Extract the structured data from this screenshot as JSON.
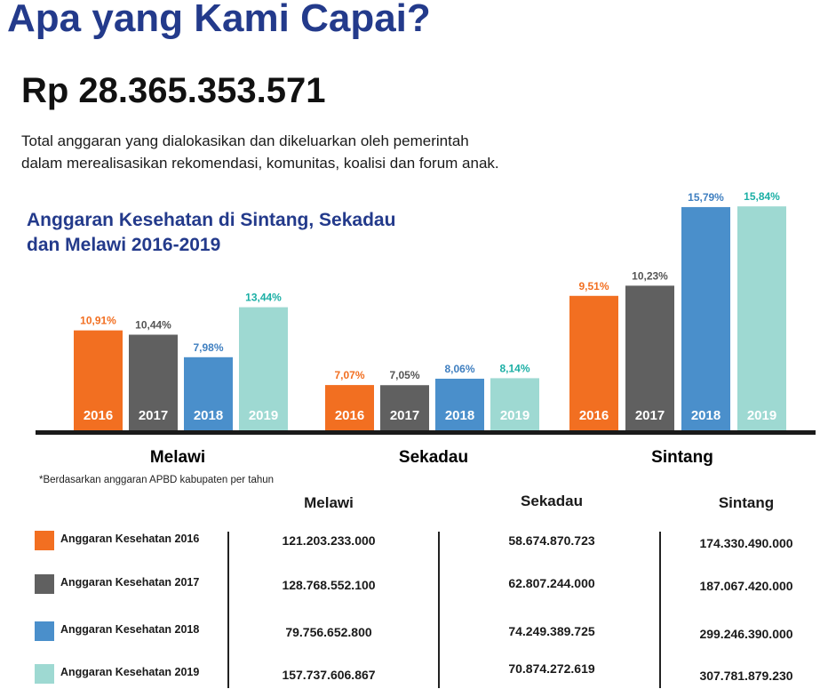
{
  "heading": "Apa yang Kami Capai?",
  "total_amount": "Rp 28.365.353.571",
  "description": [
    "Total anggaran yang dialokasikan dan dikeluarkan oleh pemerintah",
    "dalam merealisasikan rekomendasi, komunitas, koalisi dan forum anak."
  ],
  "chart_data": {
    "type": "bar",
    "title_lines": [
      "Anggaran Kesehatan di Sintang, Sekadau",
      "dan Melawi 2016-2019"
    ],
    "categories": [
      "Melawi",
      "Sekadau",
      "Sintang"
    ],
    "years": [
      "2016",
      "2017",
      "2018",
      "2019"
    ],
    "colors": {
      "2016": "#F26F21",
      "2017": "#606060",
      "2018": "#4A8FCB",
      "2019": "#9ED9D2"
    },
    "label_colors": {
      "2016": "#F26F21",
      "2017": "#555555",
      "2018": "#3F7FC0",
      "2019": "#1BAFA5"
    },
    "series": [
      {
        "name": "2016",
        "values": [
          10.91,
          7.07,
          9.51
        ],
        "labels": [
          "10,91%",
          "7,07%",
          "9,51%"
        ]
      },
      {
        "name": "2017",
        "values": [
          10.44,
          7.05,
          10.23
        ],
        "labels": [
          "10,44%",
          "7,05%",
          "10,23%"
        ]
      },
      {
        "name": "2018",
        "values": [
          7.98,
          8.06,
          15.79
        ],
        "labels": [
          "7,98%",
          "8,06%",
          "15,79%"
        ]
      },
      {
        "name": "2019",
        "values": [
          13.44,
          8.14,
          15.84
        ],
        "labels": [
          "13,44%",
          "8,14%",
          "15,84%"
        ]
      }
    ],
    "unit": "%"
  },
  "note": "*Berdasarkan anggaran APBD kabupaten per tahun",
  "table": {
    "columns": [
      "Melawi",
      "Sekadau",
      "Sintang"
    ],
    "rows": [
      {
        "label": "Anggaran Kesehatan 2016",
        "values": [
          "121.203.233.000",
          "58.674.870.723",
          "174.330.490.000"
        ]
      },
      {
        "label": "Anggaran Kesehatan 2017",
        "values": [
          "128.768.552.100",
          "62.807.244.000",
          "187.067.420.000"
        ]
      },
      {
        "label": "Anggaran Kesehatan 2018",
        "values": [
          "79.756.652.800",
          "74.249.389.725",
          "299.246.390.000"
        ]
      },
      {
        "label": "Anggaran Kesehatan 2019",
        "values": [
          "157.737.606.867",
          "70.874.272.619",
          "307.781.879.230"
        ]
      }
    ]
  }
}
